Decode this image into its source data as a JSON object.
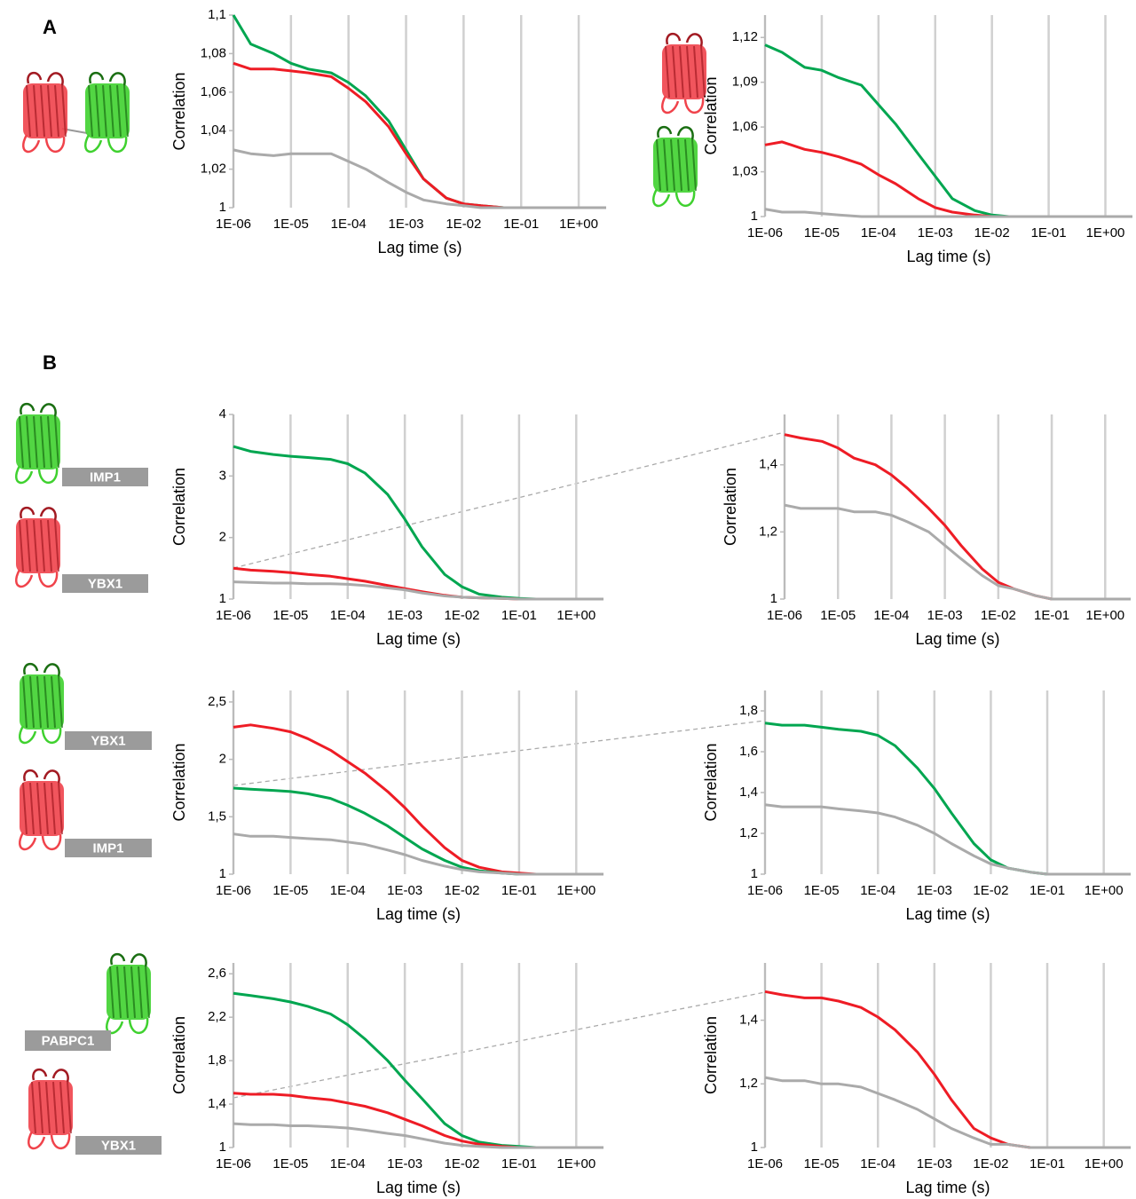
{
  "panel_labels": [
    "A",
    "B"
  ],
  "tags": [
    "IMP1",
    "YBX1",
    "YBX1",
    "IMP1",
    "PABPC1",
    "YBX1"
  ],
  "chart_data": [
    {
      "type": "line",
      "xlabel": "Lag time (s)",
      "ylabel": "Correlation",
      "xscale": "log",
      "grid": true,
      "x": [
        1e-06,
        2e-06,
        5e-06,
        1e-05,
        2e-05,
        5e-05,
        0.0001,
        0.0002,
        0.0005,
        0.001,
        0.002,
        0.005,
        0.01,
        0.02,
        0.05,
        0.1,
        0.2,
        0.5,
        1,
        3
      ],
      "xlim": [
        1e-06,
        3
      ],
      "xticks": [
        {
          "value": 1e-06,
          "label": "1E-06"
        },
        {
          "value": 1e-05,
          "label": "1E-05"
        },
        {
          "value": 0.0001,
          "label": "1E-04"
        },
        {
          "value": 0.001,
          "label": "1E-03"
        },
        {
          "value": 0.01,
          "label": "1E-02"
        },
        {
          "value": 0.1,
          "label": "1E-01"
        },
        {
          "value": 1,
          "label": "1E+00"
        }
      ],
      "ylim": [
        1,
        1.1
      ],
      "yticks": [
        1,
        {
          "value": 1.02,
          "label": "1,02"
        },
        {
          "value": 1.04,
          "label": "1,04"
        },
        {
          "value": 1.06,
          "label": "1,06"
        },
        {
          "value": 1.08,
          "label": "1,08"
        },
        {
          "value": 1.1,
          "label": "1,1"
        }
      ],
      "series": [
        {
          "color": "#00a650",
          "values": [
            1.1,
            1.085,
            1.08,
            1.075,
            1.072,
            1.07,
            1.065,
            1.058,
            1.045,
            1.03,
            1.015,
            1.005,
            1.002,
            1.001,
            1,
            1,
            1,
            1,
            1,
            1
          ]
        },
        {
          "color": "#ee1c25",
          "values": [
            1.075,
            1.072,
            1.072,
            1.071,
            1.07,
            1.068,
            1.062,
            1.055,
            1.042,
            1.028,
            1.015,
            1.005,
            1.002,
            1.001,
            1,
            1,
            1,
            1,
            1,
            1
          ]
        },
        {
          "color": "#aaaaaa",
          "values": [
            1.03,
            1.028,
            1.027,
            1.028,
            1.028,
            1.028,
            1.024,
            1.02,
            1.013,
            1.008,
            1.004,
            1.002,
            1.001,
            1,
            1,
            1,
            1,
            1,
            1,
            1
          ]
        }
      ]
    },
    {
      "type": "line",
      "xlabel": "Lag time (s)",
      "ylabel": "Correlation",
      "xscale": "log",
      "grid": true,
      "x": [
        1e-06,
        2e-06,
        5e-06,
        1e-05,
        2e-05,
        5e-05,
        0.0001,
        0.0002,
        0.0005,
        0.001,
        0.002,
        0.005,
        0.01,
        0.02,
        0.05,
        0.1,
        0.2,
        0.5,
        1,
        3
      ],
      "xlim": [
        1e-06,
        3
      ],
      "xticks": [
        {
          "value": 1e-06,
          "label": "1E-06"
        },
        {
          "value": 1e-05,
          "label": "1E-05"
        },
        {
          "value": 0.0001,
          "label": "1E-04"
        },
        {
          "value": 0.001,
          "label": "1E-03"
        },
        {
          "value": 0.01,
          "label": "1E-02"
        },
        {
          "value": 0.1,
          "label": "1E-01"
        },
        {
          "value": 1,
          "label": "1E+00"
        }
      ],
      "ylim": [
        1,
        1.135
      ],
      "yticks": [
        1,
        {
          "value": 1.03,
          "label": "1,03"
        },
        {
          "value": 1.06,
          "label": "1,06"
        },
        {
          "value": 1.09,
          "label": "1,09"
        },
        {
          "value": 1.12,
          "label": "1,12"
        }
      ],
      "series": [
        {
          "color": "#00a650",
          "values": [
            1.115,
            1.11,
            1.1,
            1.098,
            1.093,
            1.088,
            1.075,
            1.062,
            1.042,
            1.027,
            1.012,
            1.004,
            1.001,
            1,
            1,
            1,
            1,
            1,
            1,
            1
          ]
        },
        {
          "color": "#ee1c25",
          "values": [
            1.048,
            1.05,
            1.045,
            1.043,
            1.04,
            1.035,
            1.028,
            1.022,
            1.012,
            1.006,
            1.003,
            1.001,
            1,
            1,
            1,
            1,
            1,
            1,
            1,
            1
          ]
        },
        {
          "color": "#aaaaaa",
          "values": [
            1.005,
            1.003,
            1.003,
            1.002,
            1.001,
            1,
            1,
            1,
            1,
            1,
            1,
            1,
            1,
            1,
            1,
            1,
            1,
            1,
            1,
            1
          ]
        }
      ]
    },
    {
      "type": "line",
      "xlabel": "Lag time (s)",
      "ylabel": "Correlation",
      "xscale": "log",
      "grid": true,
      "x": [
        1e-06,
        2e-06,
        5e-06,
        1e-05,
        2e-05,
        5e-05,
        0.0001,
        0.0002,
        0.0005,
        0.001,
        0.002,
        0.005,
        0.01,
        0.02,
        0.05,
        0.1,
        0.2,
        0.5,
        1,
        3
      ],
      "xlim": [
        1e-06,
        3
      ],
      "xticks": [
        {
          "value": 1e-06,
          "label": "1E-06"
        },
        {
          "value": 1e-05,
          "label": "1E-05"
        },
        {
          "value": 0.0001,
          "label": "1E-04"
        },
        {
          "value": 0.001,
          "label": "1E-03"
        },
        {
          "value": 0.01,
          "label": "1E-02"
        },
        {
          "value": 0.1,
          "label": "1E-01"
        },
        {
          "value": 1,
          "label": "1E+00"
        }
      ],
      "ylim": [
        1,
        4
      ],
      "yticks": [
        1,
        2,
        3,
        4
      ],
      "series": [
        {
          "color": "#00a650",
          "values": [
            3.48,
            3.4,
            3.35,
            3.32,
            3.3,
            3.27,
            3.2,
            3.05,
            2.7,
            2.3,
            1.85,
            1.4,
            1.2,
            1.08,
            1.03,
            1.01,
            1,
            1,
            1,
            1
          ]
        },
        {
          "color": "#ee1c25",
          "values": [
            1.5,
            1.47,
            1.45,
            1.43,
            1.4,
            1.37,
            1.33,
            1.29,
            1.22,
            1.17,
            1.12,
            1.06,
            1.03,
            1.02,
            1.01,
            1,
            1,
            1,
            1,
            1
          ]
        },
        {
          "color": "#aaaaaa",
          "values": [
            1.28,
            1.27,
            1.26,
            1.26,
            1.25,
            1.25,
            1.24,
            1.22,
            1.18,
            1.15,
            1.1,
            1.05,
            1.03,
            1.02,
            1.01,
            1,
            1,
            1,
            1,
            1
          ]
        }
      ]
    },
    {
      "type": "line",
      "xlabel": "Lag time (s)",
      "ylabel": "Correlation",
      "xscale": "log",
      "grid": true,
      "x": [
        1e-06,
        2e-06,
        5e-06,
        1e-05,
        2e-05,
        5e-05,
        0.0001,
        0.0002,
        0.0005,
        0.001,
        0.002,
        0.005,
        0.01,
        0.02,
        0.05,
        0.1,
        0.2,
        0.5,
        1,
        3
      ],
      "xlim": [
        1e-06,
        3
      ],
      "xticks": [
        {
          "value": 1e-06,
          "label": "1E-06"
        },
        {
          "value": 1e-05,
          "label": "1E-05"
        },
        {
          "value": 0.0001,
          "label": "1E-04"
        },
        {
          "value": 0.001,
          "label": "1E-03"
        },
        {
          "value": 0.01,
          "label": "1E-02"
        },
        {
          "value": 0.1,
          "label": "1E-01"
        },
        {
          "value": 1,
          "label": "1E+00"
        }
      ],
      "ylim": [
        1,
        1.55
      ],
      "yticks": [
        1,
        {
          "value": 1.2,
          "label": "1,2"
        },
        {
          "value": 1.4,
          "label": "1,4"
        }
      ],
      "series": [
        {
          "color": "#ee1c25",
          "values": [
            1.49,
            1.48,
            1.47,
            1.45,
            1.42,
            1.4,
            1.37,
            1.33,
            1.27,
            1.22,
            1.16,
            1.09,
            1.05,
            1.03,
            1.01,
            1,
            1,
            1,
            1,
            1
          ]
        },
        {
          "color": "#aaaaaa",
          "values": [
            1.28,
            1.27,
            1.27,
            1.27,
            1.26,
            1.26,
            1.25,
            1.23,
            1.2,
            1.16,
            1.12,
            1.07,
            1.04,
            1.03,
            1.01,
            1,
            1,
            1,
            1,
            1
          ]
        }
      ]
    },
    {
      "type": "line",
      "xlabel": "Lag time (s)",
      "ylabel": "Correlation",
      "xscale": "log",
      "grid": true,
      "x": [
        1e-06,
        2e-06,
        5e-06,
        1e-05,
        2e-05,
        5e-05,
        0.0001,
        0.0002,
        0.0005,
        0.001,
        0.002,
        0.005,
        0.01,
        0.02,
        0.05,
        0.1,
        0.2,
        0.5,
        1,
        3
      ],
      "xlim": [
        1e-06,
        3
      ],
      "xticks": [
        {
          "value": 1e-06,
          "label": "1E-06"
        },
        {
          "value": 1e-05,
          "label": "1E-05"
        },
        {
          "value": 0.0001,
          "label": "1E-04"
        },
        {
          "value": 0.001,
          "label": "1E-03"
        },
        {
          "value": 0.01,
          "label": "1E-02"
        },
        {
          "value": 0.1,
          "label": "1E-01"
        },
        {
          "value": 1,
          "label": "1E+00"
        }
      ],
      "ylim": [
        1,
        2.6
      ],
      "yticks": [
        1,
        {
          "value": 1.5,
          "label": "1,5"
        },
        2,
        {
          "value": 2.5,
          "label": "2,5"
        }
      ],
      "series": [
        {
          "color": "#ee1c25",
          "values": [
            2.28,
            2.3,
            2.27,
            2.24,
            2.18,
            2.08,
            1.98,
            1.88,
            1.72,
            1.58,
            1.42,
            1.23,
            1.12,
            1.06,
            1.02,
            1.01,
            1,
            1,
            1,
            1
          ]
        },
        {
          "color": "#00a650",
          "values": [
            1.75,
            1.74,
            1.73,
            1.72,
            1.7,
            1.66,
            1.6,
            1.53,
            1.42,
            1.32,
            1.22,
            1.12,
            1.06,
            1.03,
            1.01,
            1,
            1,
            1,
            1,
            1
          ]
        },
        {
          "color": "#aaaaaa",
          "values": [
            1.35,
            1.33,
            1.33,
            1.32,
            1.31,
            1.3,
            1.28,
            1.26,
            1.21,
            1.17,
            1.12,
            1.07,
            1.04,
            1.02,
            1.01,
            1,
            1,
            1,
            1,
            1
          ]
        }
      ]
    },
    {
      "type": "line",
      "xlabel": "Lag time (s)",
      "ylabel": "Correlation",
      "xscale": "log",
      "grid": true,
      "x": [
        1e-06,
        2e-06,
        5e-06,
        1e-05,
        2e-05,
        5e-05,
        0.0001,
        0.0002,
        0.0005,
        0.001,
        0.002,
        0.005,
        0.01,
        0.02,
        0.05,
        0.1,
        0.2,
        0.5,
        1,
        3
      ],
      "xlim": [
        1e-06,
        3
      ],
      "xticks": [
        {
          "value": 1e-06,
          "label": "1E-06"
        },
        {
          "value": 1e-05,
          "label": "1E-05"
        },
        {
          "value": 0.0001,
          "label": "1E-04"
        },
        {
          "value": 0.001,
          "label": "1E-03"
        },
        {
          "value": 0.01,
          "label": "1E-02"
        },
        {
          "value": 0.1,
          "label": "1E-01"
        },
        {
          "value": 1,
          "label": "1E+00"
        }
      ],
      "ylim": [
        1,
        1.9
      ],
      "yticks": [
        1,
        {
          "value": 1.2,
          "label": "1,2"
        },
        {
          "value": 1.4,
          "label": "1,4"
        },
        {
          "value": 1.6,
          "label": "1,6"
        },
        {
          "value": 1.8,
          "label": "1,8"
        }
      ],
      "series": [
        {
          "color": "#00a650",
          "values": [
            1.74,
            1.73,
            1.73,
            1.72,
            1.71,
            1.7,
            1.68,
            1.63,
            1.52,
            1.42,
            1.3,
            1.15,
            1.07,
            1.03,
            1.01,
            1,
            1,
            1,
            1,
            1
          ]
        },
        {
          "color": "#aaaaaa",
          "values": [
            1.34,
            1.33,
            1.33,
            1.33,
            1.32,
            1.31,
            1.3,
            1.28,
            1.24,
            1.2,
            1.15,
            1.09,
            1.05,
            1.03,
            1.01,
            1,
            1,
            1,
            1,
            1
          ]
        }
      ]
    },
    {
      "type": "line",
      "xlabel": "Lag time (s)",
      "ylabel": "Correlation",
      "xscale": "log",
      "grid": true,
      "x": [
        1e-06,
        2e-06,
        5e-06,
        1e-05,
        2e-05,
        5e-05,
        0.0001,
        0.0002,
        0.0005,
        0.001,
        0.002,
        0.005,
        0.01,
        0.02,
        0.05,
        0.1,
        0.2,
        0.5,
        1,
        3
      ],
      "xlim": [
        1e-06,
        3
      ],
      "xticks": [
        {
          "value": 1e-06,
          "label": "1E-06"
        },
        {
          "value": 1e-05,
          "label": "1E-05"
        },
        {
          "value": 0.0001,
          "label": "1E-04"
        },
        {
          "value": 0.001,
          "label": "1E-03"
        },
        {
          "value": 0.01,
          "label": "1E-02"
        },
        {
          "value": 0.1,
          "label": "1E-01"
        },
        {
          "value": 1,
          "label": "1E+00"
        }
      ],
      "ylim": [
        1,
        2.7
      ],
      "yticks": [
        1,
        {
          "value": 1.4,
          "label": "1,4"
        },
        {
          "value": 1.8,
          "label": "1,8"
        },
        {
          "value": 2.2,
          "label": "2,2"
        },
        {
          "value": 2.6,
          "label": "2,6"
        }
      ],
      "series": [
        {
          "color": "#00a650",
          "values": [
            2.42,
            2.4,
            2.37,
            2.34,
            2.3,
            2.23,
            2.13,
            2.0,
            1.8,
            1.62,
            1.45,
            1.22,
            1.11,
            1.05,
            1.02,
            1.01,
            1,
            1,
            1,
            1
          ]
        },
        {
          "color": "#ee1c25",
          "values": [
            1.5,
            1.49,
            1.49,
            1.48,
            1.46,
            1.44,
            1.41,
            1.38,
            1.32,
            1.26,
            1.2,
            1.11,
            1.06,
            1.03,
            1.01,
            1,
            1,
            1,
            1,
            1
          ]
        },
        {
          "color": "#aaaaaa",
          "values": [
            1.22,
            1.21,
            1.21,
            1.2,
            1.2,
            1.19,
            1.18,
            1.16,
            1.13,
            1.11,
            1.08,
            1.04,
            1.02,
            1.01,
            1,
            1,
            1,
            1,
            1,
            1
          ]
        }
      ]
    },
    {
      "type": "line",
      "xlabel": "Lag time (s)",
      "ylabel": "Correlation",
      "xscale": "log",
      "grid": true,
      "x": [
        1e-06,
        2e-06,
        5e-06,
        1e-05,
        2e-05,
        5e-05,
        0.0001,
        0.0002,
        0.0005,
        0.001,
        0.002,
        0.005,
        0.01,
        0.02,
        0.05,
        0.1,
        0.2,
        0.5,
        1,
        3
      ],
      "xlim": [
        1e-06,
        3
      ],
      "xticks": [
        {
          "value": 1e-06,
          "label": "1E-06"
        },
        {
          "value": 1e-05,
          "label": "1E-05"
        },
        {
          "value": 0.0001,
          "label": "1E-04"
        },
        {
          "value": 0.001,
          "label": "1E-03"
        },
        {
          "value": 0.01,
          "label": "1E-02"
        },
        {
          "value": 0.1,
          "label": "1E-01"
        },
        {
          "value": 1,
          "label": "1E+00"
        }
      ],
      "ylim": [
        1,
        1.58
      ],
      "yticks": [
        1,
        {
          "value": 1.2,
          "label": "1,2"
        },
        {
          "value": 1.4,
          "label": "1,4"
        }
      ],
      "series": [
        {
          "color": "#ee1c25",
          "values": [
            1.49,
            1.48,
            1.47,
            1.47,
            1.46,
            1.44,
            1.41,
            1.37,
            1.3,
            1.23,
            1.15,
            1.06,
            1.03,
            1.01,
            1,
            1,
            1,
            1,
            1,
            1
          ]
        },
        {
          "color": "#aaaaaa",
          "values": [
            1.22,
            1.21,
            1.21,
            1.2,
            1.2,
            1.19,
            1.17,
            1.15,
            1.12,
            1.09,
            1.06,
            1.03,
            1.01,
            1.01,
            1,
            1,
            1,
            1,
            1,
            1
          ]
        }
      ]
    }
  ]
}
